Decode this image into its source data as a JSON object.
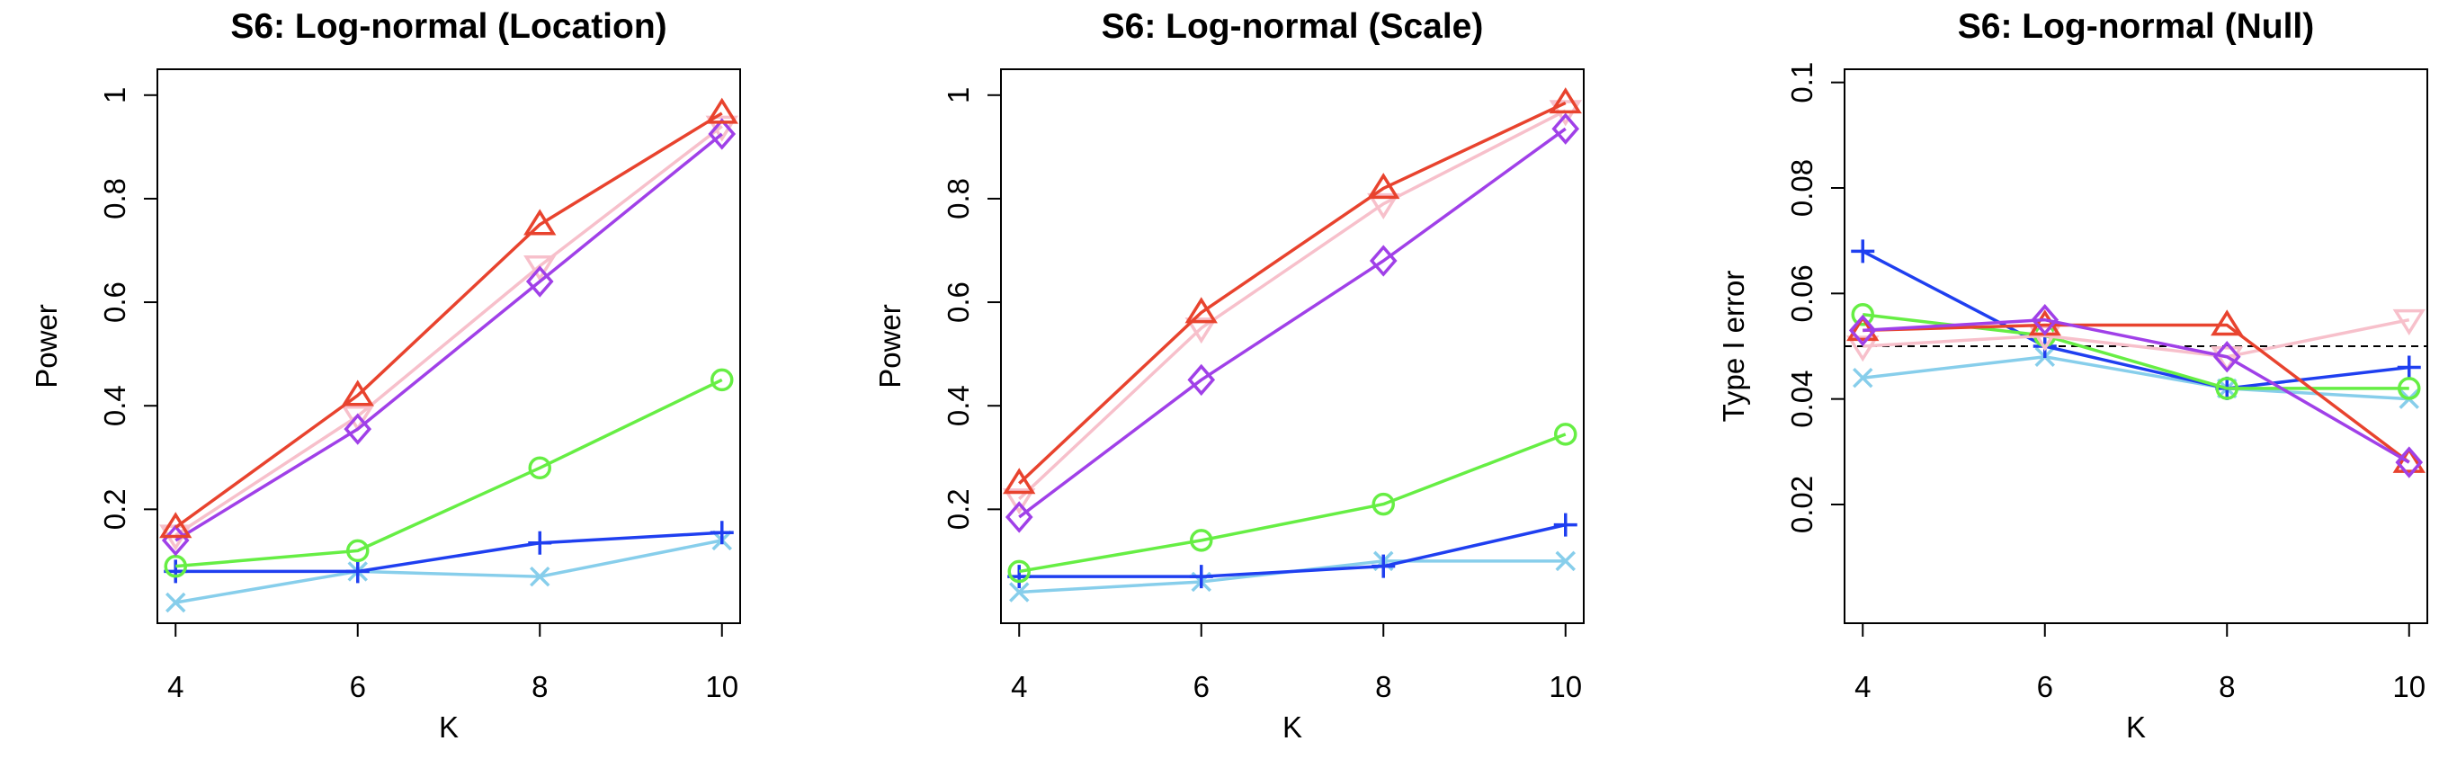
{
  "chart_data": [
    {
      "type": "line",
      "title": "S6: Log-normal (Location)",
      "xlabel": "K",
      "ylabel": "Power",
      "x": [
        4,
        6,
        8,
        10
      ],
      "xlim": [
        3.8,
        10.2
      ],
      "ylim": [
        -0.02,
        1.05
      ],
      "yticks": [
        0.2,
        0.4,
        0.6,
        0.8,
        1.0
      ],
      "ytick_labels": [
        "0.2",
        "0.4",
        "0.6",
        "0.8",
        "1"
      ],
      "xtick_labels": [
        "4",
        "6",
        "8",
        "10"
      ],
      "series": [
        {
          "name": "cross",
          "marker": "x",
          "color": "#87ceeb",
          "values": [
            0.02,
            0.08,
            0.07,
            0.14
          ]
        },
        {
          "name": "plus",
          "marker": "+",
          "color": "#1f3ff0",
          "values": [
            0.08,
            0.08,
            0.135,
            0.155
          ]
        },
        {
          "name": "circle",
          "marker": "o",
          "color": "#66ee44",
          "values": [
            0.09,
            0.12,
            0.28,
            0.45
          ]
        },
        {
          "name": "down-triangle",
          "marker": "v",
          "color": "#f7c0cb",
          "values": [
            0.15,
            0.38,
            0.67,
            0.94
          ]
        },
        {
          "name": "diamond",
          "marker": "d",
          "color": "#a040e8",
          "values": [
            0.14,
            0.355,
            0.64,
            0.925
          ]
        },
        {
          "name": "up-triangle",
          "marker": "^",
          "color": "#e8432e",
          "values": [
            0.165,
            0.42,
            0.75,
            0.965
          ]
        }
      ]
    },
    {
      "type": "line",
      "title": "S6: Log-normal (Scale)",
      "xlabel": "K",
      "ylabel": "Power",
      "x": [
        4,
        6,
        8,
        10
      ],
      "xlim": [
        3.8,
        10.2
      ],
      "ylim": [
        -0.02,
        1.05
      ],
      "yticks": [
        0.2,
        0.4,
        0.6,
        0.8,
        1.0
      ],
      "ytick_labels": [
        "0.2",
        "0.4",
        "0.6",
        "0.8",
        "1"
      ],
      "xtick_labels": [
        "4",
        "6",
        "8",
        "10"
      ],
      "series": [
        {
          "name": "cross",
          "marker": "x",
          "color": "#87ceeb",
          "values": [
            0.04,
            0.06,
            0.1,
            0.1
          ]
        },
        {
          "name": "plus",
          "marker": "+",
          "color": "#1f3ff0",
          "values": [
            0.07,
            0.07,
            0.09,
            0.17
          ]
        },
        {
          "name": "circle",
          "marker": "o",
          "color": "#66ee44",
          "values": [
            0.08,
            0.14,
            0.21,
            0.345
          ]
        },
        {
          "name": "down-triangle",
          "marker": "v",
          "color": "#f7c0cb",
          "values": [
            0.22,
            0.55,
            0.79,
            0.97
          ]
        },
        {
          "name": "diamond",
          "marker": "d",
          "color": "#a040e8",
          "values": [
            0.185,
            0.45,
            0.68,
            0.935
          ]
        },
        {
          "name": "up-triangle",
          "marker": "^",
          "color": "#e8432e",
          "values": [
            0.25,
            0.58,
            0.82,
            0.985
          ]
        }
      ]
    },
    {
      "type": "line",
      "title": "S6: Log-normal (Null)",
      "xlabel": "K",
      "ylabel": "Type I error",
      "x": [
        4,
        6,
        8,
        10
      ],
      "xlim": [
        3.8,
        10.2
      ],
      "ylim": [
        -0.0025,
        0.1025
      ],
      "yticks": [
        0.02,
        0.04,
        0.06,
        0.08,
        0.1
      ],
      "ytick_labels": [
        "0.02",
        "0.04",
        "0.06",
        "0.08",
        "0.1"
      ],
      "xtick_labels": [
        "4",
        "6",
        "8",
        "10"
      ],
      "reference_line": 0.05,
      "series": [
        {
          "name": "cross",
          "marker": "x",
          "color": "#87ceeb",
          "values": [
            0.044,
            0.048,
            0.042,
            0.04
          ]
        },
        {
          "name": "plus",
          "marker": "+",
          "color": "#1f3ff0",
          "values": [
            0.068,
            0.05,
            0.042,
            0.046
          ]
        },
        {
          "name": "circle",
          "marker": "o",
          "color": "#66ee44",
          "values": [
            0.056,
            0.052,
            0.042,
            0.042
          ]
        },
        {
          "name": "down-triangle",
          "marker": "v",
          "color": "#f7c0cb",
          "values": [
            0.05,
            0.052,
            0.048,
            0.055
          ]
        },
        {
          "name": "up-triangle",
          "marker": "^",
          "color": "#e8432e",
          "values": [
            0.053,
            0.054,
            0.054,
            0.028
          ]
        },
        {
          "name": "diamond",
          "marker": "d",
          "color": "#a040e8",
          "values": [
            0.053,
            0.055,
            0.048,
            0.028
          ]
        }
      ]
    }
  ]
}
